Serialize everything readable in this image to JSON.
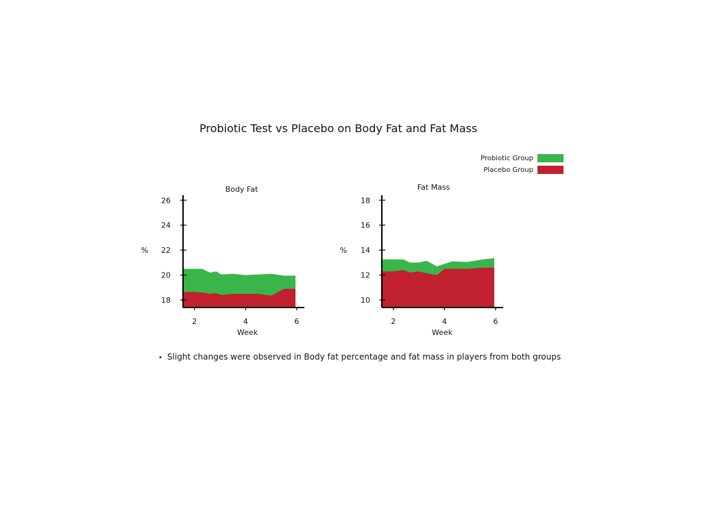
{
  "title": "Probiotic Test vs Placebo on Body Fat and Fat Mass",
  "legend": [
    {
      "label": "Probiotic Group",
      "color": "#3ab54a"
    },
    {
      "label": "Placebo Group",
      "color": "#c1202f"
    }
  ],
  "note": "Slight changes were observed in Body fat percentage and fat mass in players from both groups",
  "chart_data": [
    {
      "type": "area",
      "title": "Body Fat",
      "xlabel": "Week",
      "ylabel": "%",
      "xlim": [
        1.55,
        6.3
      ],
      "ylim": [
        17.4,
        26.4
      ],
      "xticks": [
        2,
        4,
        6
      ],
      "yticks": [
        18,
        20,
        22,
        24,
        26
      ],
      "x": [
        1.55,
        2.0,
        2.3,
        2.6,
        2.85,
        3.05,
        3.5,
        4.0,
        4.5,
        5.0,
        5.5,
        5.95
      ],
      "series": [
        {
          "name": "Probiotic Group",
          "color": "#3ab54a",
          "values": [
            20.5,
            20.5,
            20.5,
            20.2,
            20.3,
            20.05,
            20.1,
            20.0,
            20.05,
            20.1,
            19.95,
            19.95
          ]
        },
        {
          "name": "Placebo Group",
          "color": "#c1202f",
          "values": [
            18.65,
            18.65,
            18.6,
            18.5,
            18.55,
            18.4,
            18.5,
            18.5,
            18.5,
            18.35,
            18.9,
            18.9
          ]
        }
      ]
    },
    {
      "type": "area",
      "title": "Fat Mass",
      "xlabel": "Week",
      "ylabel": "%",
      "xlim": [
        1.55,
        6.3
      ],
      "ylim": [
        9.4,
        18.4
      ],
      "xticks": [
        2,
        4,
        6
      ],
      "yticks": [
        10,
        12,
        14,
        16,
        18
      ],
      "x": [
        1.55,
        2.0,
        2.4,
        2.65,
        3.0,
        3.3,
        3.7,
        4.0,
        4.3,
        4.9,
        5.5,
        5.95
      ],
      "series": [
        {
          "name": "Probiotic Group",
          "color": "#3ab54a",
          "values": [
            13.25,
            13.25,
            13.25,
            13.0,
            13.0,
            13.15,
            12.7,
            12.9,
            13.1,
            13.05,
            13.25,
            13.35
          ]
        },
        {
          "name": "Placebo Group",
          "color": "#c1202f",
          "values": [
            12.3,
            12.3,
            12.4,
            12.2,
            12.3,
            12.15,
            12.0,
            12.5,
            12.5,
            12.5,
            12.6,
            12.6
          ]
        }
      ]
    }
  ]
}
